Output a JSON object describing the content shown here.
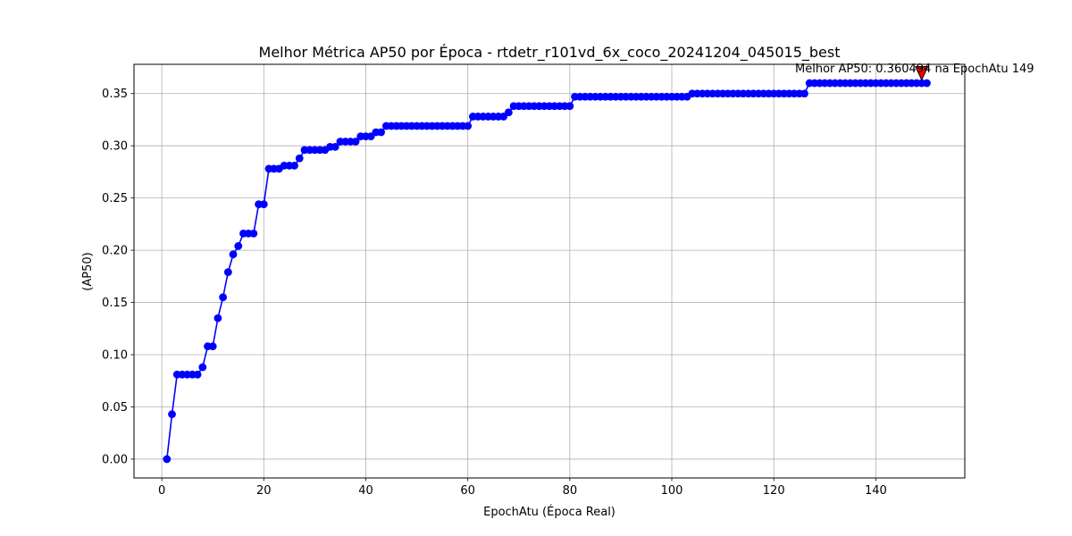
{
  "chart_data": {
    "type": "line",
    "title": "Melhor Métrica AP50 por Época - rtdetr_r101vd_6x_coco_20241204_045015_best",
    "xlabel": "EpochAtu (Época Real)",
    "ylabel": "(AP50)",
    "xlim": [
      -5.45,
      157.45
    ],
    "ylim": [
      -0.018,
      0.378
    ],
    "xticks": [
      0,
      20,
      40,
      60,
      80,
      100,
      120,
      140
    ],
    "xtick_labels": [
      "0",
      "20",
      "40",
      "60",
      "80",
      "100",
      "120",
      "140"
    ],
    "yticks": [
      0.0,
      0.05,
      0.1,
      0.15,
      0.2,
      0.25,
      0.3,
      0.35
    ],
    "ytick_labels": [
      "0.00",
      "0.05",
      "0.10",
      "0.15",
      "0.20",
      "0.25",
      "0.30",
      "0.35"
    ],
    "grid": true,
    "line_color": "#0000ff",
    "marker_color": "#0000ff",
    "annotation": {
      "text": "Melhor AP50: 0.360494 na EpochAtu 149",
      "x": 149,
      "y": 0.360494,
      "marker_color": "#ff0000"
    },
    "segments": [
      {
        "from": 1,
        "to": 1,
        "value": 0.0
      },
      {
        "from": 2,
        "to": 2,
        "value": 0.043
      },
      {
        "from": 3,
        "to": 7,
        "value": 0.081
      },
      {
        "from": 8,
        "to": 8,
        "value": 0.088
      },
      {
        "from": 9,
        "to": 10,
        "value": 0.108
      },
      {
        "from": 11,
        "to": 11,
        "value": 0.135
      },
      {
        "from": 12,
        "to": 12,
        "value": 0.155
      },
      {
        "from": 13,
        "to": 13,
        "value": 0.179
      },
      {
        "from": 14,
        "to": 14,
        "value": 0.196
      },
      {
        "from": 15,
        "to": 15,
        "value": 0.204
      },
      {
        "from": 16,
        "to": 18,
        "value": 0.216
      },
      {
        "from": 19,
        "to": 20,
        "value": 0.244
      },
      {
        "from": 21,
        "to": 23,
        "value": 0.278
      },
      {
        "from": 24,
        "to": 26,
        "value": 0.281
      },
      {
        "from": 27,
        "to": 27,
        "value": 0.288
      },
      {
        "from": 28,
        "to": 32,
        "value": 0.296
      },
      {
        "from": 33,
        "to": 34,
        "value": 0.299
      },
      {
        "from": 35,
        "to": 38,
        "value": 0.304
      },
      {
        "from": 39,
        "to": 41,
        "value": 0.309
      },
      {
        "from": 42,
        "to": 43,
        "value": 0.313
      },
      {
        "from": 44,
        "to": 60,
        "value": 0.319
      },
      {
        "from": 61,
        "to": 67,
        "value": 0.328
      },
      {
        "from": 68,
        "to": 68,
        "value": 0.332
      },
      {
        "from": 69,
        "to": 80,
        "value": 0.338
      },
      {
        "from": 81,
        "to": 103,
        "value": 0.347
      },
      {
        "from": 104,
        "to": 126,
        "value": 0.35
      },
      {
        "from": 127,
        "to": 150,
        "value": 0.36
      }
    ]
  }
}
